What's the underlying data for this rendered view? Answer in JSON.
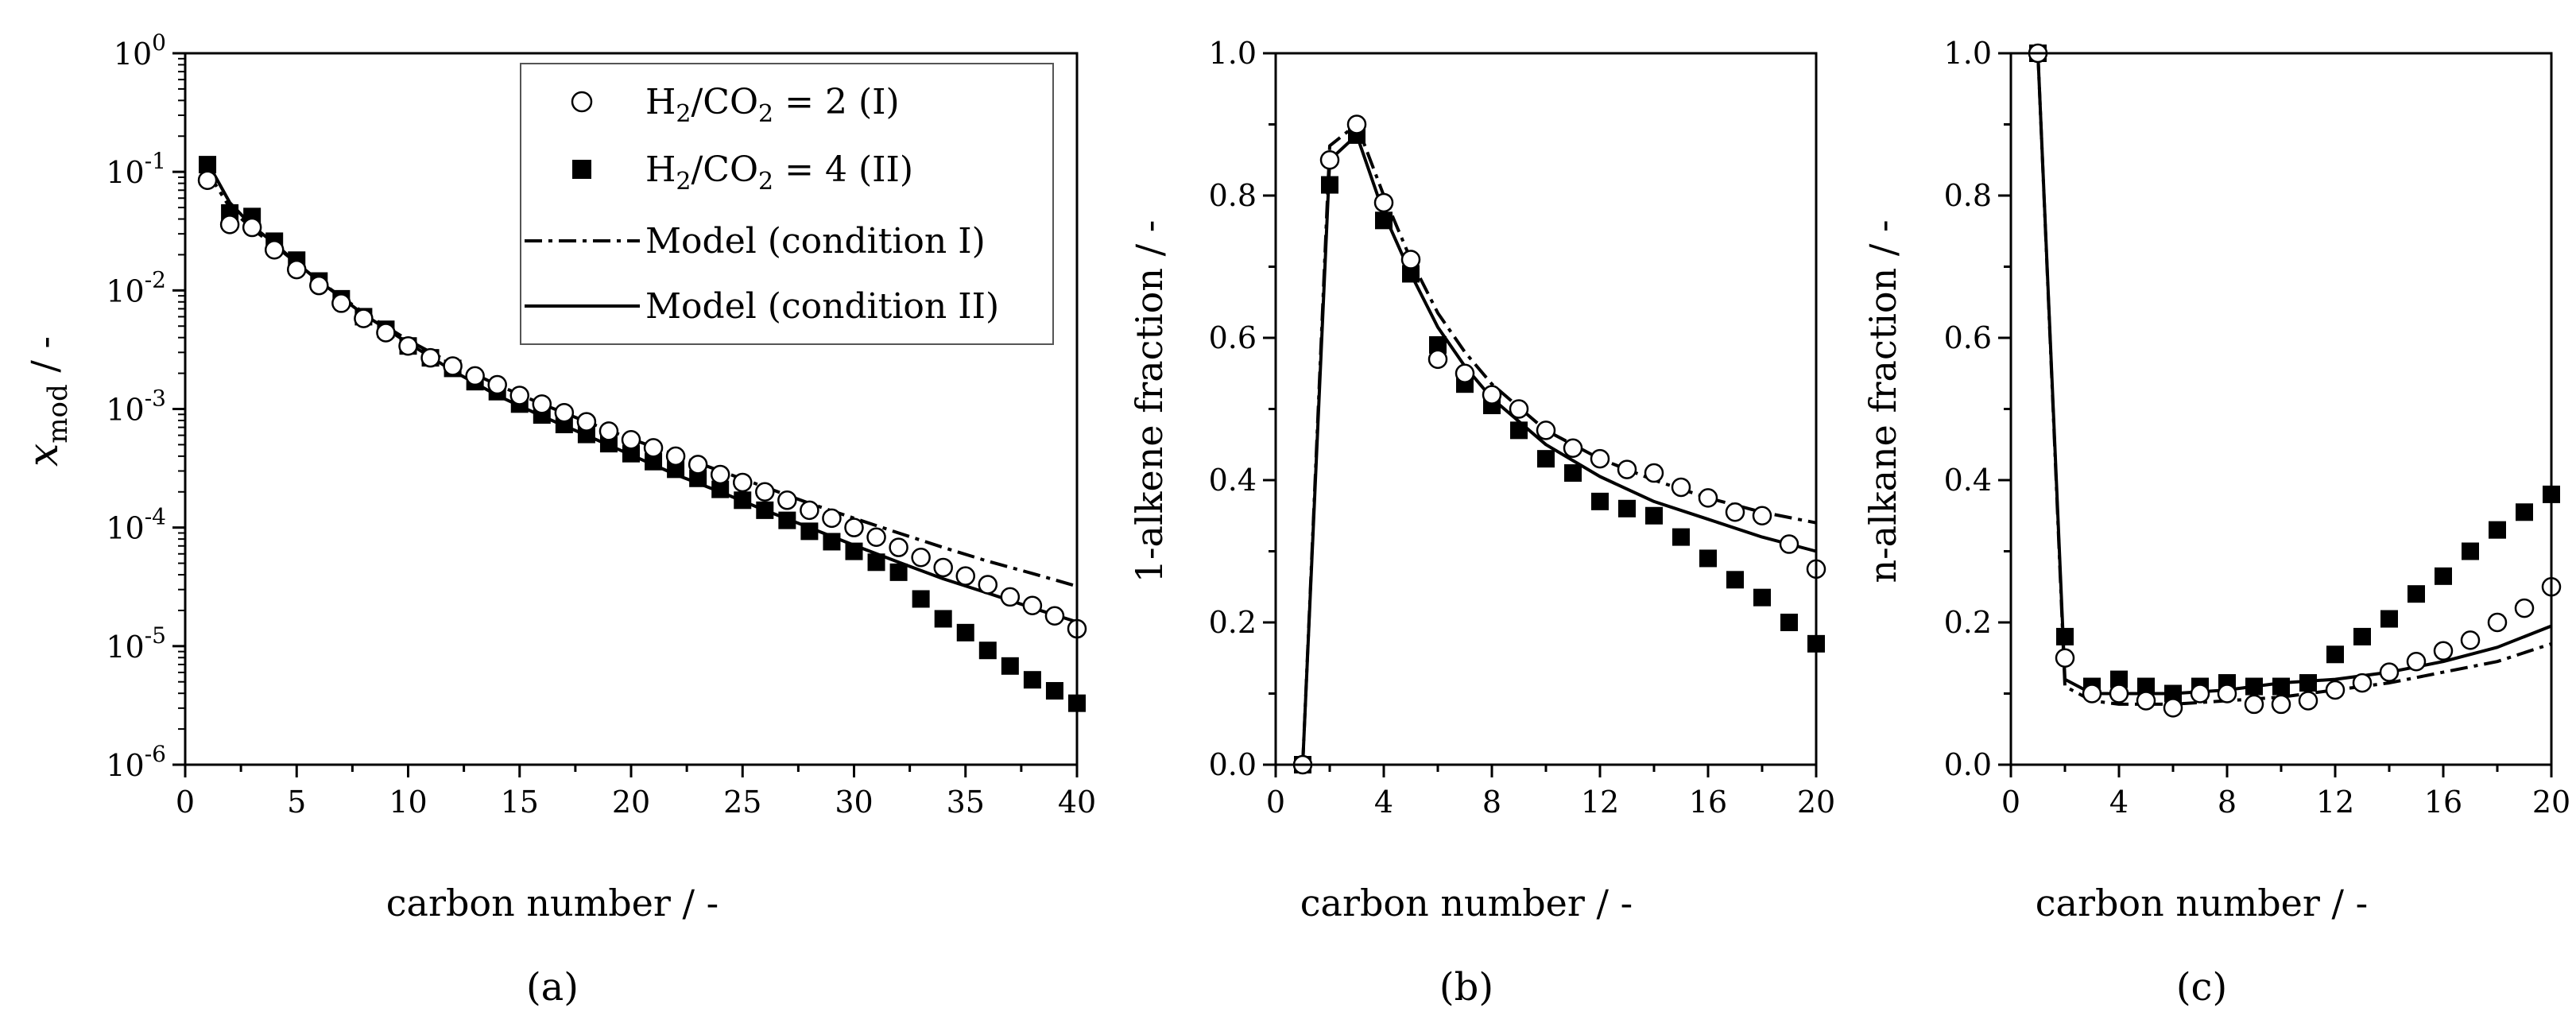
{
  "chart_data": [
    {
      "id": "a",
      "type": "scatter",
      "caption": "(a)",
      "xlabel": "carbon number / -",
      "ylabel_main": "x",
      "ylabel_sub": "mod",
      "ylabel_suffix": " / -",
      "y_scale": "log",
      "xlim": [
        0,
        40
      ],
      "ylim": [
        1e-06,
        1
      ],
      "x_ticks": [
        0,
        5,
        10,
        15,
        20,
        25,
        30,
        35,
        40
      ],
      "x_tick_labels": [
        "0",
        "5",
        "10",
        "15",
        "20",
        "25",
        "30",
        "35",
        "40"
      ],
      "y_tick_labels": [
        {
          "base": "10",
          "exp": "-6"
        },
        {
          "base": "10",
          "exp": "-5"
        },
        {
          "base": "10",
          "exp": "-4"
        },
        {
          "base": "10",
          "exp": "-3"
        },
        {
          "base": "10",
          "exp": "-2"
        },
        {
          "base": "10",
          "exp": "-1"
        },
        {
          "base": "10",
          "exp": "0"
        }
      ],
      "legend_position": "top-right",
      "legend": [
        {
          "kind": "open-circle",
          "pre": "H",
          "s1": "2",
          "mid": "/CO",
          "s2": "2",
          "post": " = 2 (I)"
        },
        {
          "kind": "filled-square",
          "pre": "H",
          "s1": "2",
          "mid": "/CO",
          "s2": "2",
          "post": " = 4 (II)"
        },
        {
          "kind": "dashdot",
          "text": "Model (condition I)"
        },
        {
          "kind": "solid",
          "text": "Model (condition II)"
        }
      ],
      "series": [
        {
          "name": "H2/CO2 = 2 (I)",
          "style": "open-circle",
          "x": [
            1,
            2,
            3,
            4,
            5,
            6,
            7,
            8,
            9,
            10,
            11,
            12,
            13,
            14,
            15,
            16,
            17,
            18,
            19,
            20,
            21,
            22,
            23,
            24,
            25,
            26,
            27,
            28,
            29,
            30,
            31,
            32,
            33,
            34,
            35,
            36,
            37,
            38,
            39,
            40
          ],
          "y": [
            0.085,
            0.036,
            0.034,
            0.022,
            0.015,
            0.011,
            0.0078,
            0.0058,
            0.0044,
            0.0034,
            0.0027,
            0.0023,
            0.0019,
            0.0016,
            0.0013,
            0.0011,
            0.00093,
            0.00078,
            0.00065,
            0.00055,
            0.00047,
            0.0004,
            0.00034,
            0.00028,
            0.00024,
            0.0002,
            0.00017,
            0.00014,
            0.00012,
            0.0001,
            8.3e-05,
            6.8e-05,
            5.6e-05,
            4.6e-05,
            3.9e-05,
            3.3e-05,
            2.6e-05,
            2.2e-05,
            1.8e-05,
            1.4e-05
          ]
        },
        {
          "name": "H2/CO2 = 4 (II)",
          "style": "filled-square",
          "x": [
            1,
            2,
            3,
            4,
            5,
            6,
            7,
            8,
            9,
            10,
            11,
            12,
            13,
            14,
            15,
            16,
            17,
            18,
            19,
            20,
            21,
            22,
            23,
            24,
            25,
            26,
            27,
            28,
            29,
            30,
            31,
            32,
            33,
            34,
            35,
            36,
            37,
            38,
            39,
            40
          ],
          "y": [
            0.115,
            0.045,
            0.042,
            0.026,
            0.018,
            0.012,
            0.0085,
            0.006,
            0.0047,
            0.0034,
            0.0027,
            0.0022,
            0.0017,
            0.0014,
            0.0011,
            0.00089,
            0.00074,
            0.00061,
            0.00051,
            0.00042,
            0.00036,
            0.00031,
            0.00026,
            0.00021,
            0.00017,
            0.00014,
            0.000115,
            9.3e-05,
            7.6e-05,
            6.3e-05,
            5.1e-05,
            4.2e-05,
            2.5e-05,
            1.7e-05,
            1.3e-05,
            9.2e-06,
            6.8e-06,
            5.2e-06,
            4.2e-06,
            3.3e-06
          ]
        },
        {
          "name": "Model (condition I)",
          "style": "dashdot",
          "x": [
            1,
            2,
            3,
            4,
            5,
            6,
            8,
            10,
            12,
            14,
            16,
            18,
            20,
            22,
            24,
            26,
            28,
            30,
            32,
            34,
            36,
            38,
            40
          ],
          "y": [
            0.1,
            0.05,
            0.033,
            0.024,
            0.017,
            0.012,
            0.0065,
            0.0038,
            0.0024,
            0.0016,
            0.0011,
            0.00078,
            0.00056,
            0.00041,
            0.0003,
            0.00022,
            0.00016,
            0.00012,
            9e-05,
            6.8e-05,
            5.2e-05,
            4.1e-05,
            3.2e-05
          ]
        },
        {
          "name": "Model (condition II)",
          "style": "solid",
          "x": [
            1,
            2,
            3,
            4,
            5,
            6,
            8,
            10,
            12,
            14,
            16,
            18,
            20,
            22,
            24,
            26,
            28,
            30,
            32,
            34,
            36,
            38,
            40
          ],
          "y": [
            0.12,
            0.055,
            0.035,
            0.025,
            0.017,
            0.012,
            0.0063,
            0.0036,
            0.0021,
            0.0013,
            0.00087,
            0.0006,
            0.00041,
            0.00028,
            0.0002,
            0.00014,
            0.0001,
            7.1e-05,
            5.1e-05,
            3.7e-05,
            2.8e-05,
            2.1e-05,
            1.6e-05
          ]
        }
      ]
    },
    {
      "id": "b",
      "type": "scatter",
      "caption": "(b)",
      "xlabel": "carbon number / -",
      "ylabel": "1-alkene fraction / -",
      "xlim": [
        0,
        20
      ],
      "ylim": [
        0,
        1
      ],
      "x_ticks": [
        0,
        4,
        8,
        12,
        16,
        20
      ],
      "x_tick_labels": [
        "0",
        "4",
        "8",
        "12",
        "16",
        "20"
      ],
      "y_ticks": [
        0,
        0.2,
        0.4,
        0.6,
        0.8,
        1.0
      ],
      "y_tick_labels": [
        "0.0",
        "0.2",
        "0.4",
        "0.6",
        "0.8",
        "1.0"
      ],
      "series": [
        {
          "name": "H2/CO2 = 2 (I)",
          "style": "open-circle",
          "x": [
            1,
            2,
            3,
            4,
            5,
            6,
            7,
            8,
            9,
            10,
            11,
            12,
            13,
            14,
            15,
            16,
            17,
            18,
            19,
            20
          ],
          "y": [
            0.0,
            0.85,
            0.9,
            0.79,
            0.71,
            0.57,
            0.55,
            0.52,
            0.5,
            0.47,
            0.445,
            0.43,
            0.415,
            0.41,
            0.39,
            0.375,
            0.355,
            0.35,
            0.31,
            0.275
          ]
        },
        {
          "name": "H2/CO2 = 4 (II)",
          "style": "filled-square",
          "x": [
            1,
            2,
            3,
            4,
            5,
            6,
            7,
            8,
            9,
            10,
            11,
            12,
            13,
            14,
            15,
            16,
            17,
            18,
            19,
            20
          ],
          "y": [
            0.0,
            0.815,
            0.885,
            0.765,
            0.69,
            0.59,
            0.535,
            0.505,
            0.47,
            0.43,
            0.41,
            0.37,
            0.36,
            0.35,
            0.32,
            0.29,
            0.26,
            0.235,
            0.2,
            0.17
          ]
        },
        {
          "name": "Model (condition I)",
          "style": "dashdot",
          "x": [
            1,
            2,
            3,
            4,
            5,
            6,
            7,
            8,
            10,
            12,
            14,
            16,
            18,
            20
          ],
          "y": [
            0.0,
            0.87,
            0.9,
            0.8,
            0.71,
            0.635,
            0.58,
            0.535,
            0.47,
            0.43,
            0.4,
            0.375,
            0.355,
            0.34
          ]
        },
        {
          "name": "Model (condition II)",
          "style": "solid",
          "x": [
            1,
            2,
            3,
            4,
            5,
            6,
            7,
            8,
            10,
            12,
            14,
            16,
            18,
            20
          ],
          "y": [
            0.0,
            0.85,
            0.885,
            0.775,
            0.69,
            0.615,
            0.56,
            0.515,
            0.45,
            0.405,
            0.37,
            0.345,
            0.32,
            0.3
          ]
        }
      ]
    },
    {
      "id": "c",
      "type": "scatter",
      "caption": "(c)",
      "xlabel": "carbon number / -",
      "ylabel": "n-alkane fraction / -",
      "xlim": [
        0,
        20
      ],
      "ylim": [
        0,
        1
      ],
      "x_ticks": [
        0,
        4,
        8,
        12,
        16,
        20
      ],
      "x_tick_labels": [
        "0",
        "4",
        "8",
        "12",
        "16",
        "20"
      ],
      "y_ticks": [
        0,
        0.2,
        0.4,
        0.6,
        0.8,
        1.0
      ],
      "y_tick_labels": [
        "0.0",
        "0.2",
        "0.4",
        "0.6",
        "0.8",
        "1.0"
      ],
      "series": [
        {
          "name": "H2/CO2 = 2 (I)",
          "style": "open-circle",
          "x": [
            1,
            2,
            3,
            4,
            5,
            6,
            7,
            8,
            9,
            10,
            11,
            12,
            13,
            14,
            15,
            16,
            17,
            18,
            19,
            20
          ],
          "y": [
            1.0,
            0.15,
            0.1,
            0.1,
            0.09,
            0.08,
            0.1,
            0.1,
            0.085,
            0.085,
            0.09,
            0.105,
            0.115,
            0.13,
            0.145,
            0.16,
            0.175,
            0.2,
            0.22,
            0.25
          ]
        },
        {
          "name": "H2/CO2 = 4 (II)",
          "style": "filled-square",
          "x": [
            1,
            2,
            3,
            4,
            5,
            6,
            7,
            8,
            9,
            10,
            11,
            12,
            13,
            14,
            15,
            16,
            17,
            18,
            19,
            20
          ],
          "y": [
            1.0,
            0.18,
            0.11,
            0.12,
            0.11,
            0.1,
            0.11,
            0.115,
            0.11,
            0.11,
            0.115,
            0.155,
            0.18,
            0.205,
            0.24,
            0.265,
            0.3,
            0.33,
            0.355,
            0.38
          ]
        },
        {
          "name": "Model (condition I)",
          "style": "dashdot",
          "x": [
            1,
            2,
            3,
            4,
            6,
            8,
            10,
            12,
            14,
            16,
            18,
            20
          ],
          "y": [
            1.0,
            0.11,
            0.09,
            0.085,
            0.085,
            0.09,
            0.095,
            0.105,
            0.115,
            0.13,
            0.145,
            0.17
          ]
        },
        {
          "name": "Model (condition II)",
          "style": "solid",
          "x": [
            1,
            2,
            3,
            4,
            6,
            8,
            10,
            12,
            14,
            16,
            18,
            20
          ],
          "y": [
            1.0,
            0.12,
            0.1,
            0.1,
            0.1,
            0.105,
            0.115,
            0.12,
            0.13,
            0.145,
            0.165,
            0.195
          ]
        }
      ]
    }
  ]
}
